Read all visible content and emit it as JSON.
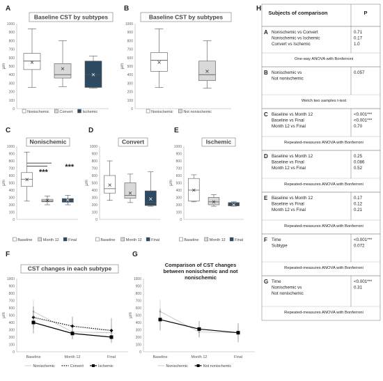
{
  "figure": {
    "panel_letters": [
      "A",
      "B",
      "C",
      "D",
      "E",
      "F",
      "G",
      "H"
    ]
  },
  "colors": {
    "nonischemic": "#ffffff",
    "convert": "#d9d9d9",
    "ischemic": "#2e4a62",
    "not_nonischemic": "#d9d9d9",
    "month12": "#d9d9d9",
    "final": "#2e4a62",
    "line_nonischemic": "#bfbfbf",
    "line_convert": "#000000",
    "line_ischemic": "#000000",
    "line_not_nonischemic": "#000000"
  },
  "chart_data": [
    {
      "id": "A",
      "type": "boxplot",
      "title": "Baseline CST by subtypes",
      "ylabel": "μm",
      "ylim": [
        0,
        1000
      ],
      "yticks": [
        0,
        100,
        200,
        300,
        400,
        500,
        600,
        700,
        800,
        900,
        1000
      ],
      "categories": [
        "Nonischemic",
        "Convert",
        "Ischemic"
      ],
      "boxes": [
        {
          "min": 250,
          "q1": 460,
          "median": 560,
          "q3": 650,
          "max": 940,
          "mean": 545
        },
        {
          "min": 260,
          "q1": 360,
          "median": 400,
          "q3": 530,
          "max": 800,
          "mean": 470
        },
        {
          "min": 240,
          "q1": 250,
          "median": 400,
          "q3": 560,
          "max": 620,
          "mean": 400
        }
      ],
      "legend": [
        "Nonischemic",
        "Convert",
        "Ischemic"
      ]
    },
    {
      "id": "B",
      "type": "boxplot",
      "title": "Baseline CST by subtypes",
      "ylabel": "μm",
      "ylim": [
        0,
        1000
      ],
      "yticks": [
        0,
        100,
        200,
        300,
        400,
        500,
        600,
        700,
        800,
        900,
        1000
      ],
      "categories": [
        "Nonischemic",
        "Not nonischemic"
      ],
      "boxes": [
        {
          "min": 250,
          "q1": 440,
          "median": 570,
          "q3": 660,
          "max": 940,
          "mean": 545
        },
        {
          "min": 240,
          "q1": 330,
          "median": 400,
          "q3": 560,
          "max": 800,
          "mean": 440
        }
      ],
      "legend": [
        "Nonischemic",
        "Not nonischemic"
      ]
    },
    {
      "id": "C",
      "type": "boxplot",
      "title": "Nonischemic",
      "ylabel": "μm",
      "ylim": [
        0,
        1000
      ],
      "yticks": [
        0,
        100,
        200,
        300,
        400,
        500,
        600,
        700,
        800,
        900,
        1000
      ],
      "categories": [
        "Baseline",
        "Month 12",
        "Final"
      ],
      "boxes": [
        {
          "min": 250,
          "q1": 450,
          "median": 550,
          "q3": 640,
          "max": 920,
          "mean": 545
        },
        {
          "min": 200,
          "q1": 240,
          "median": 250,
          "q3": 275,
          "max": 320,
          "mean": 260
        },
        {
          "min": 200,
          "q1": 235,
          "median": 260,
          "q3": 285,
          "max": 330,
          "mean": 265
        }
      ],
      "significance": [
        "***",
        "***"
      ],
      "legend": [
        "Baseline",
        "Month 12",
        "Final"
      ]
    },
    {
      "id": "D",
      "type": "boxplot",
      "title": "Convert",
      "ylabel": "μm",
      "ylim": [
        0,
        1000
      ],
      "yticks": [
        0,
        100,
        200,
        300,
        400,
        500,
        600,
        700,
        800,
        900,
        1000
      ],
      "categories": [
        "Baseline",
        "Month 12",
        "Final"
      ],
      "boxes": [
        {
          "min": 260,
          "q1": 360,
          "median": 420,
          "q3": 600,
          "max": 800,
          "mean": 470
        },
        {
          "min": 230,
          "q1": 290,
          "median": 330,
          "q3": 500,
          "max": 620,
          "mean": 360
        },
        {
          "min": 180,
          "q1": 190,
          "median": 230,
          "q3": 390,
          "max": 650,
          "mean": 280
        }
      ],
      "legend": [
        "Baseline",
        "Month 12",
        "Final"
      ]
    },
    {
      "id": "E",
      "type": "boxplot",
      "title": "Ischemic",
      "ylabel": "μm",
      "ylim": [
        0,
        1000
      ],
      "yticks": [
        0,
        100,
        200,
        300,
        400,
        500,
        600,
        700,
        800,
        900,
        1000
      ],
      "categories": [
        "Baseline",
        "Month 12",
        "Final"
      ],
      "boxes": [
        {
          "min": 240,
          "q1": 250,
          "median": 400,
          "q3": 560,
          "max": 610,
          "mean": 400
        },
        {
          "min": 180,
          "q1": 200,
          "median": 240,
          "q3": 300,
          "max": 340,
          "mean": 240
        },
        {
          "min": 180,
          "q1": 185,
          "median": 200,
          "q3": 230,
          "max": 240,
          "mean": 200
        }
      ],
      "legend": [
        "Baseline",
        "Month 12",
        "Final"
      ]
    },
    {
      "id": "F",
      "type": "line",
      "title": "CST changes in each subtype",
      "ylabel": "μm",
      "ylim": [
        0,
        1000
      ],
      "yticks": [
        0,
        100,
        200,
        300,
        400,
        500,
        600,
        700,
        800,
        900,
        1000
      ],
      "categories": [
        "Baseline",
        "Month 12",
        "Final"
      ],
      "series": [
        {
          "name": "Nonischemic",
          "values": [
            550,
            270,
            260
          ],
          "err": [
            160,
            80,
            80
          ]
        },
        {
          "name": "Convert",
          "values": [
            470,
            350,
            290
          ],
          "err": [
            150,
            130,
            170
          ]
        },
        {
          "name": "Ischemic",
          "values": [
            400,
            250,
            200
          ],
          "err": [
            150,
            80,
            30
          ]
        }
      ]
    },
    {
      "id": "G",
      "type": "line",
      "title": "Comparison of CST changes between nonischemic and not nonischemic",
      "title_lines": [
        "Comparison of CST changes",
        "between nonischemic and not",
        "nonischemic"
      ],
      "ylabel": "μm",
      "ylim": [
        0,
        1000
      ],
      "yticks": [
        0,
        100,
        200,
        300,
        400,
        500,
        600,
        700,
        800,
        900,
        1000
      ],
      "categories": [
        "Baseline",
        "Month 12",
        "Final"
      ],
      "series": [
        {
          "name": "Nonischemic",
          "values": [
            550,
            270,
            260
          ],
          "err": [
            160,
            80,
            80
          ]
        },
        {
          "name": "Not nonischemic",
          "values": [
            440,
            310,
            260
          ],
          "err": [
            150,
            110,
            130
          ]
        }
      ]
    }
  ],
  "table": {
    "panel_label": "H",
    "header_subject": "Subjects of comparison",
    "header_p": "P",
    "rows": [
      {
        "letter": "A",
        "subjects": [
          "Nonischemic vs Convert",
          "Nonischemic vs Ischemic",
          "Convert vs Ischemic"
        ],
        "p": [
          "0.71",
          "0.17",
          "1.0"
        ],
        "test": "One-way ANOVA with Bonferroni"
      },
      {
        "letter": "B",
        "subjects": [
          "Nonischemic vs",
          "Not nonischemic"
        ],
        "p": [
          "0.057"
        ],
        "test": "Welch two samples t-test"
      },
      {
        "letter": "C",
        "subjects": [
          "Baseline vs Month 12",
          "Baseline vs Final",
          "Month 12 vs Final"
        ],
        "p": [
          "<0.001***",
          "<0.001***",
          "0.70"
        ],
        "test": "Repeated-measures ANOVA with Bonferroni"
      },
      {
        "letter": "D",
        "subjects": [
          "Baseline vs Month 12",
          "Baseline vs Final",
          "Month 12 vs Final"
        ],
        "p": [
          "0.25",
          "0.086",
          "0.52"
        ],
        "test": "Repeated-measures ANOVA with Bonferroni"
      },
      {
        "letter": "E",
        "subjects": [
          "Baseline vs Month 12",
          "Baseline vs Final",
          "Month 12 vs Final"
        ],
        "p": [
          "0.17",
          "0.12",
          "0.21"
        ],
        "test": "Repeated-measures ANOVA with Bonferroni"
      },
      {
        "letter": "F",
        "subjects": [
          "Time",
          "Subtype"
        ],
        "p": [
          "<0.001***",
          "0.072"
        ],
        "test": "Repeated-measures ANOVA with Bonferroni"
      },
      {
        "letter": "G",
        "subjects": [
          "Time",
          "Nonischemic vs",
          "Not nonischemic"
        ],
        "p": [
          "<0.001***",
          "0.31"
        ],
        "test": "Repeated-measures ANOVA with Bonferroni"
      }
    ]
  }
}
